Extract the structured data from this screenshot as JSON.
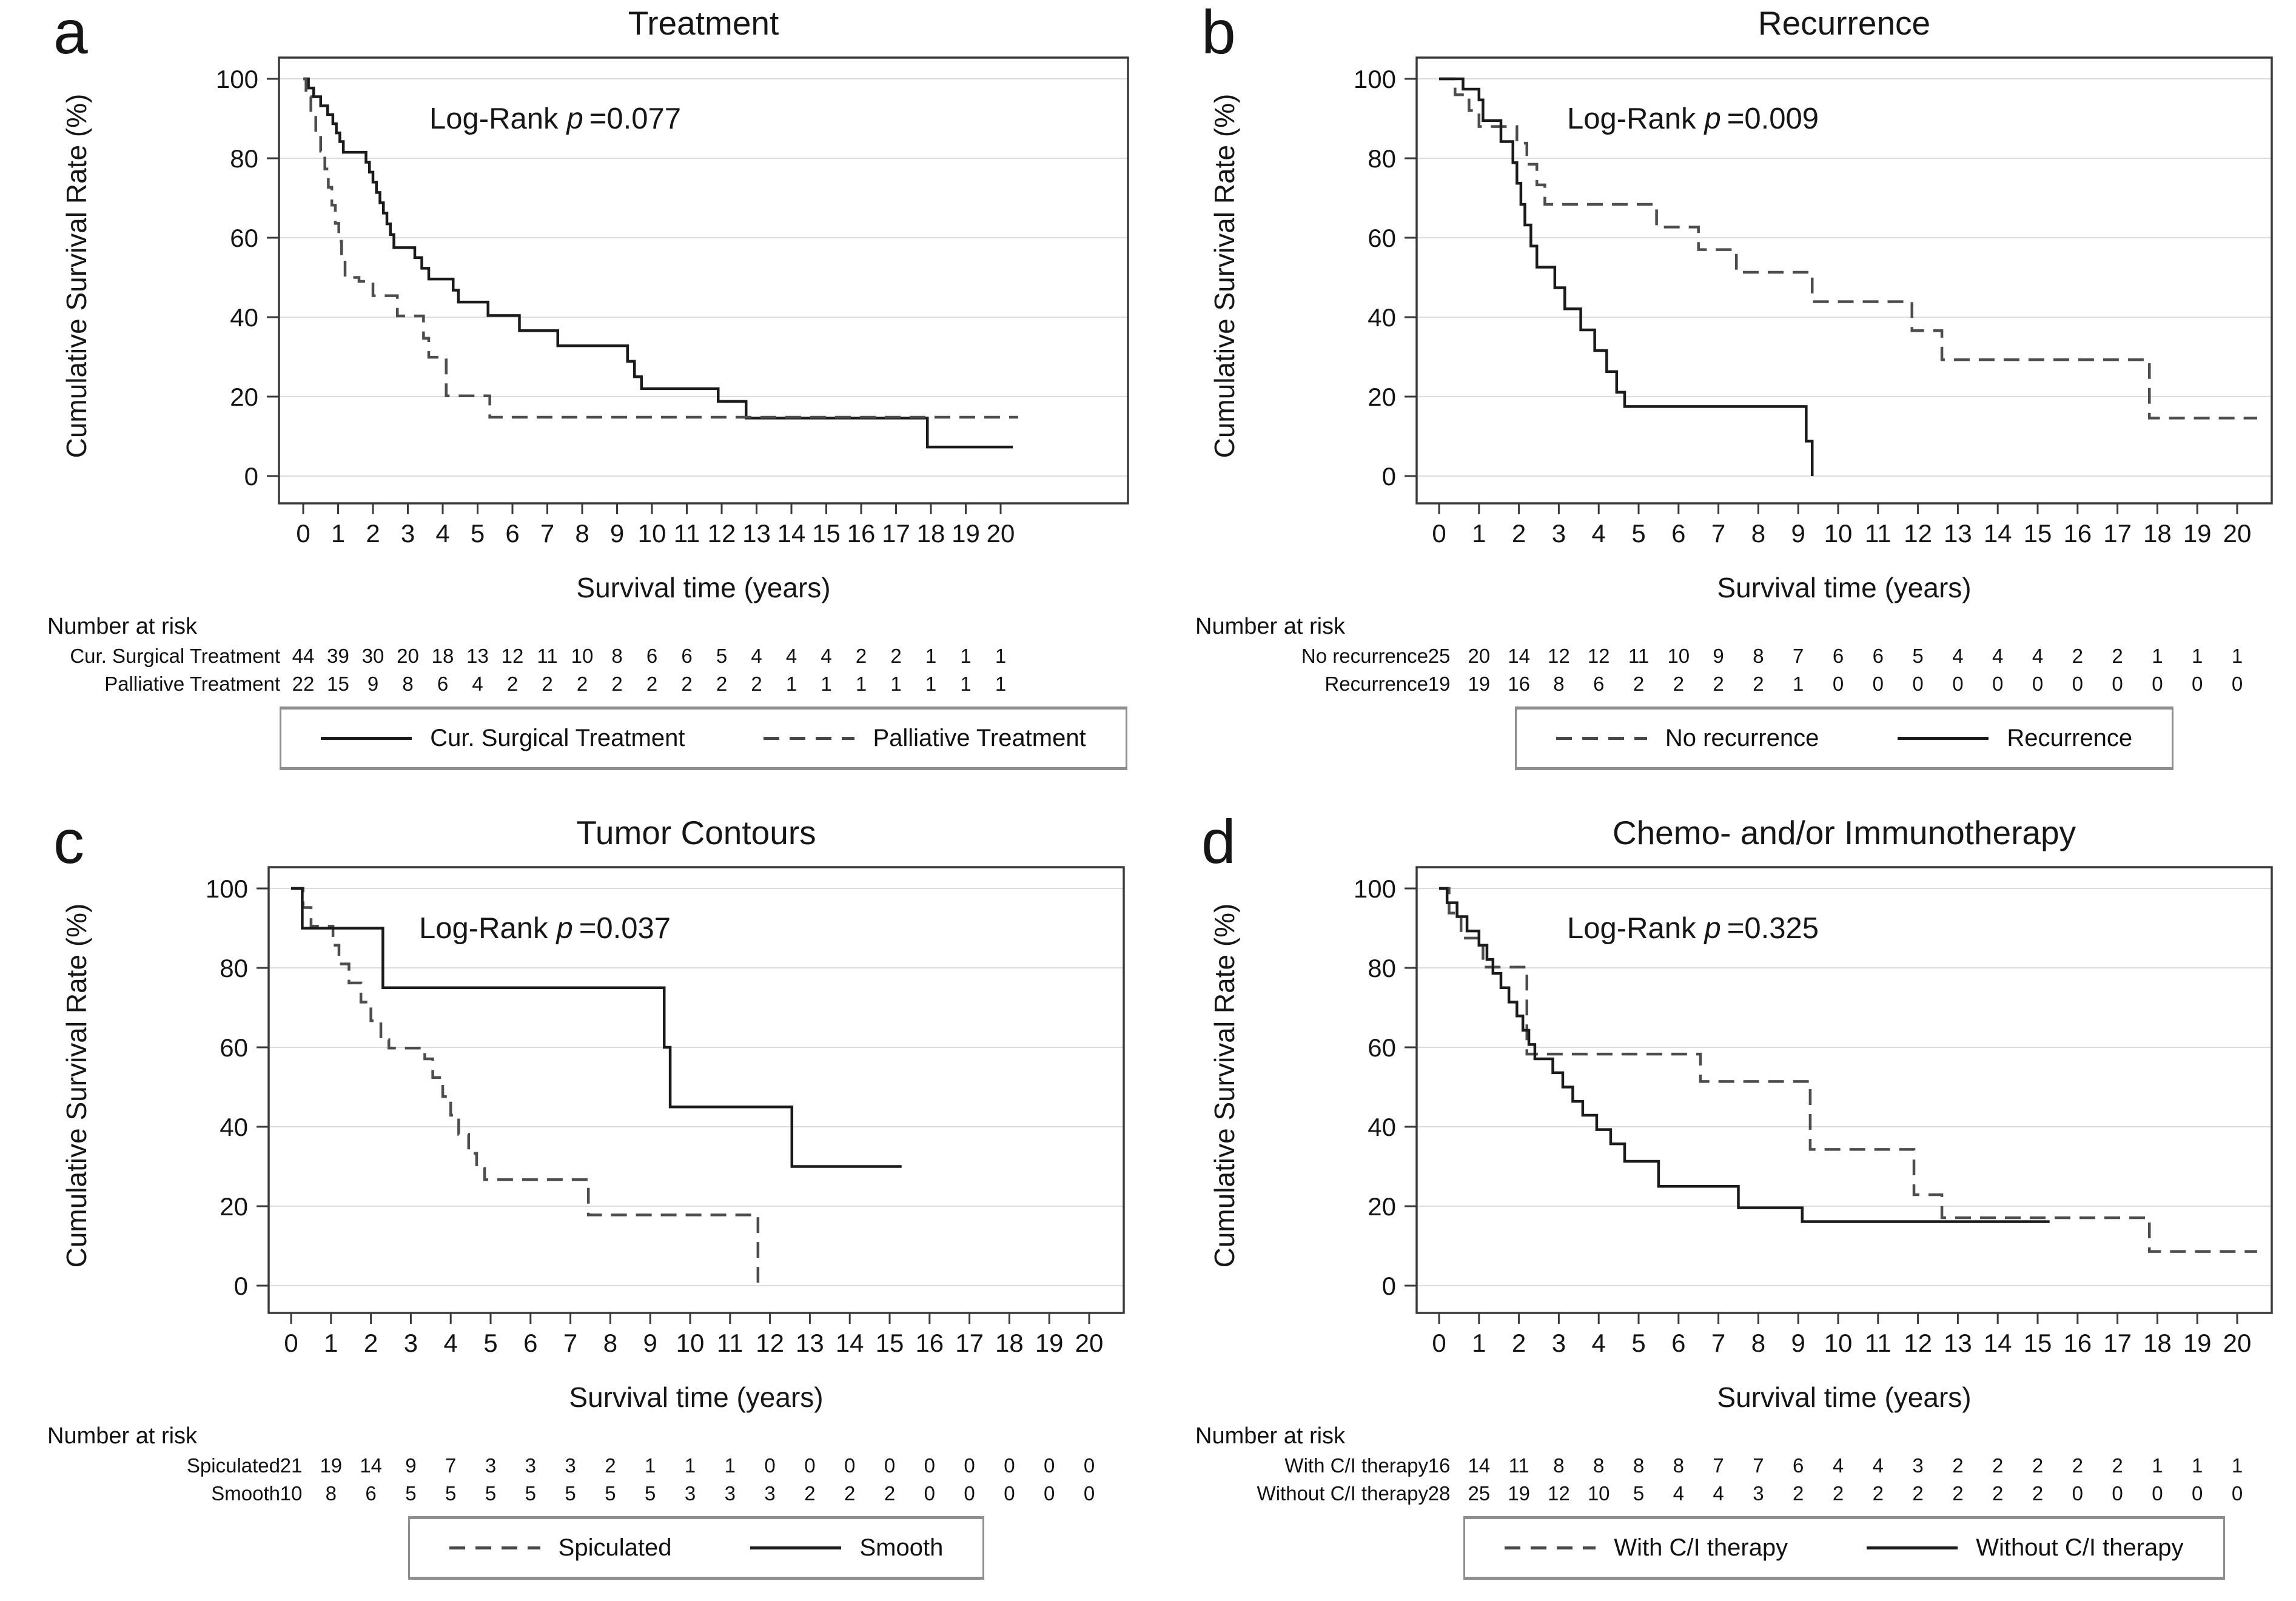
{
  "shared": {
    "risk_heading": "Number at risk",
    "logrank_label": "Log-Rank",
    "p_symbol": "p",
    "x_ticks": [
      0,
      1,
      2,
      3,
      4,
      5,
      6,
      7,
      8,
      9,
      10,
      11,
      12,
      13,
      14,
      15,
      16,
      17,
      18,
      19,
      20
    ],
    "y_ticks": [
      0,
      20,
      40,
      60,
      80,
      100
    ],
    "colors": {
      "solid_line": "#1b1b1b",
      "dashed_line": "#4d4d4d",
      "grid": "#dcdcdc",
      "frame": "#3a3a3a"
    }
  },
  "chart_data": [
    {
      "panel_label": "a",
      "type": "km_step_line",
      "title": "Treatment",
      "xlabel": "Survival time (years)",
      "ylabel": "Cumulative Survival Rate (%)",
      "xlim": [
        0,
        21.5
      ],
      "ylim": [
        0,
        100
      ],
      "logrank_p": "0.077",
      "p_text": "=0.077",
      "legend_position": "bottom",
      "grid": true,
      "series": [
        {
          "name": "Cur. Surgical Treatment",
          "line": "solid",
          "points": [
            [
              0,
              100
            ],
            [
              0.15,
              97.7
            ],
            [
              0.3,
              95.5
            ],
            [
              0.5,
              93.2
            ],
            [
              0.7,
              91
            ],
            [
              0.85,
              88.7
            ],
            [
              0.95,
              86.4
            ],
            [
              1.05,
              84.2
            ],
            [
              1.15,
              81.5
            ],
            [
              1.8,
              79
            ],
            [
              1.9,
              76.5
            ],
            [
              2,
              74
            ],
            [
              2.1,
              71.4
            ],
            [
              2.2,
              68.8
            ],
            [
              2.3,
              66.2
            ],
            [
              2.4,
              63.5
            ],
            [
              2.5,
              60.8
            ],
            [
              2.6,
              57.5
            ],
            [
              3.2,
              55
            ],
            [
              3.4,
              52.3
            ],
            [
              3.6,
              49.6
            ],
            [
              4.3,
              46.8
            ],
            [
              4.45,
              43.8
            ],
            [
              5.3,
              40.4
            ],
            [
              6.2,
              36.6
            ],
            [
              7.3,
              32.8
            ],
            [
              9.3,
              28.9
            ],
            [
              9.5,
              25
            ],
            [
              9.7,
              22
            ],
            [
              11.9,
              18.8
            ],
            [
              12.7,
              14.6
            ],
            [
              17.9,
              7.3
            ],
            [
              20.35,
              7.3
            ]
          ]
        },
        {
          "name": "Palliative Treatment",
          "line": "dashed",
          "points": [
            [
              0,
              100
            ],
            [
              0.08,
              95.5
            ],
            [
              0.22,
              90.9
            ],
            [
              0.36,
              86.4
            ],
            [
              0.5,
              81.8
            ],
            [
              0.62,
              77.3
            ],
            [
              0.72,
              72.7
            ],
            [
              0.82,
              68.2
            ],
            [
              0.92,
              63.6
            ],
            [
              1.02,
              59.1
            ],
            [
              1.1,
              54.5
            ],
            [
              1.2,
              50
            ],
            [
              1.6,
              49
            ],
            [
              2,
              45.4
            ],
            [
              2.7,
              40.3
            ],
            [
              3.45,
              34.7
            ],
            [
              3.6,
              29.9
            ],
            [
              4.1,
              20.2
            ],
            [
              5.35,
              14.8
            ],
            [
              20.5,
              14.8
            ]
          ]
        }
      ],
      "legend": [
        {
          "label": "Cur. Surgical Treatment",
          "line": "solid"
        },
        {
          "label": "Palliative Treatment",
          "line": "dashed"
        }
      ],
      "risk_table": {
        "rows": [
          {
            "label": "Cur. Surgical Treatment",
            "counts": [
              44,
              39,
              30,
              20,
              18,
              13,
              12,
              11,
              10,
              8,
              6,
              6,
              5,
              4,
              4,
              4,
              2,
              2,
              1,
              1,
              1
            ]
          },
          {
            "label": "Palliative Treatment",
            "counts": [
              22,
              15,
              9,
              8,
              6,
              4,
              2,
              2,
              2,
              2,
              2,
              2,
              2,
              2,
              1,
              1,
              1,
              1,
              1,
              1,
              1
            ]
          }
        ]
      }
    },
    {
      "panel_label": "b",
      "type": "km_step_line",
      "title": "Recurrence",
      "xlabel": "Survival time (years)",
      "ylabel": "Cumulative Survival Rate (%)",
      "xlim": [
        0,
        21
      ],
      "ylim": [
        0,
        100
      ],
      "logrank_p": "0.009",
      "p_text": "=0.009",
      "legend_position": "bottom",
      "grid": true,
      "series": [
        {
          "name": "No recurrence",
          "line": "dashed",
          "points": [
            [
              0,
              100
            ],
            [
              0.4,
              96
            ],
            [
              0.75,
              92
            ],
            [
              1,
              88
            ],
            [
              1.95,
              83.8
            ],
            [
              2.2,
              78.5
            ],
            [
              2.45,
              73.3
            ],
            [
              2.65,
              68.4
            ],
            [
              5.45,
              62.7
            ],
            [
              6.5,
              57
            ],
            [
              7.45,
              51.3
            ],
            [
              9.35,
              43.9
            ],
            [
              11.85,
              36.6
            ],
            [
              12.6,
              29.3
            ],
            [
              17.8,
              14.6
            ],
            [
              20.5,
              14.6
            ]
          ]
        },
        {
          "name": "Recurrence",
          "line": "solid",
          "points": [
            [
              0,
              100
            ],
            [
              0.6,
              97.4
            ],
            [
              1,
              94.7
            ],
            [
              1.1,
              89.5
            ],
            [
              1.55,
              84.2
            ],
            [
              1.85,
              78.9
            ],
            [
              1.95,
              73.7
            ],
            [
              2.05,
              68.4
            ],
            [
              2.15,
              63.2
            ],
            [
              2.3,
              57.9
            ],
            [
              2.45,
              52.6
            ],
            [
              2.9,
              47.4
            ],
            [
              3.15,
              42.1
            ],
            [
              3.55,
              36.8
            ],
            [
              3.9,
              31.6
            ],
            [
              4.2,
              26.3
            ],
            [
              4.45,
              21.1
            ],
            [
              4.65,
              17.5
            ],
            [
              9.2,
              8.8
            ],
            [
              9.35,
              0
            ]
          ]
        }
      ],
      "legend": [
        {
          "label": "No recurrence",
          "line": "dashed"
        },
        {
          "label": "Recurrence",
          "line": "solid"
        }
      ],
      "risk_table": {
        "rows": [
          {
            "label": "No recurrence",
            "counts": [
              25,
              20,
              14,
              12,
              12,
              11,
              10,
              9,
              8,
              7,
              6,
              6,
              5,
              4,
              4,
              4,
              2,
              2,
              1,
              1,
              1
            ]
          },
          {
            "label": "Recurrence",
            "counts": [
              19,
              19,
              16,
              8,
              6,
              2,
              2,
              2,
              2,
              1,
              0,
              0,
              0,
              0,
              0,
              0,
              0,
              0,
              0,
              0,
              0
            ]
          }
        ]
      }
    },
    {
      "panel_label": "c",
      "type": "km_step_line",
      "title": "Tumor Contours",
      "xlabel": "Survival time (years)",
      "ylabel": "Cumulative Survival Rate (%)",
      "xlim": [
        0,
        21
      ],
      "ylim": [
        0,
        100
      ],
      "logrank_p": "0.037",
      "p_text": "=0.037",
      "legend_position": "bottom",
      "grid": true,
      "series": [
        {
          "name": "Spiculated",
          "line": "dashed",
          "points": [
            [
              0,
              100
            ],
            [
              0.3,
              95.2
            ],
            [
              0.5,
              90.5
            ],
            [
              1.05,
              85.7
            ],
            [
              1.2,
              81
            ],
            [
              1.45,
              76.2
            ],
            [
              1.75,
              71.4
            ],
            [
              2,
              66.7
            ],
            [
              2.25,
              61.9
            ],
            [
              2.45,
              59.8
            ],
            [
              3.35,
              57.1
            ],
            [
              3.55,
              52.4
            ],
            [
              3.8,
              47.6
            ],
            [
              4,
              42.9
            ],
            [
              4.2,
              38.1
            ],
            [
              4.45,
              33.3
            ],
            [
              4.65,
              29.5
            ],
            [
              4.85,
              26.7
            ],
            [
              7.45,
              17.8
            ],
            [
              11.7,
              0
            ]
          ]
        },
        {
          "name": "Smooth",
          "line": "solid",
          "points": [
            [
              0,
              100
            ],
            [
              0.28,
              90
            ],
            [
              2.3,
              75
            ],
            [
              9.35,
              60
            ],
            [
              9.5,
              45
            ],
            [
              12.55,
              30
            ],
            [
              15.3,
              30
            ]
          ]
        }
      ],
      "legend": [
        {
          "label": "Spiculated",
          "line": "dashed"
        },
        {
          "label": "Smooth",
          "line": "solid"
        }
      ],
      "risk_table": {
        "rows": [
          {
            "label": "Spiculated",
            "counts": [
              21,
              19,
              14,
              9,
              7,
              3,
              3,
              3,
              2,
              1,
              1,
              1,
              0,
              0,
              0,
              0,
              0,
              0,
              0,
              0,
              0
            ]
          },
          {
            "label": "Smooth",
            "counts": [
              10,
              8,
              6,
              5,
              5,
              5,
              5,
              5,
              5,
              5,
              3,
              3,
              3,
              2,
              2,
              2,
              0,
              0,
              0,
              0,
              0
            ]
          }
        ]
      }
    },
    {
      "panel_label": "d",
      "type": "km_step_line",
      "title": "Chemo- and/or Immunotherapy",
      "xlabel": "Survival time (years)",
      "ylabel": "Cumulative Survival Rate (%)",
      "xlim": [
        0,
        21
      ],
      "ylim": [
        0,
        100
      ],
      "logrank_p": "0.325",
      "p_text": "=0.325",
      "legend_position": "bottom",
      "grid": true,
      "series": [
        {
          "name": "With C/I therapy",
          "line": "dashed",
          "points": [
            [
              0,
              100
            ],
            [
              0.25,
              93.8
            ],
            [
              0.55,
              87.5
            ],
            [
              1.1,
              80.2
            ],
            [
              2.2,
              58.3
            ],
            [
              6.55,
              51.4
            ],
            [
              9.3,
              34.3
            ],
            [
              11.9,
              22.9
            ],
            [
              12.6,
              17.1
            ],
            [
              17.8,
              8.6
            ],
            [
              20.5,
              8.6
            ]
          ]
        },
        {
          "name": "Without C/I therapy",
          "line": "solid",
          "points": [
            [
              0,
              100
            ],
            [
              0.2,
              96.4
            ],
            [
              0.45,
              92.9
            ],
            [
              0.7,
              89.3
            ],
            [
              1,
              85.7
            ],
            [
              1.2,
              82.1
            ],
            [
              1.35,
              78.6
            ],
            [
              1.55,
              75
            ],
            [
              1.75,
              71.4
            ],
            [
              1.95,
              67.9
            ],
            [
              2.1,
              64.3
            ],
            [
              2.25,
              60.7
            ],
            [
              2.4,
              57.1
            ],
            [
              2.85,
              53.6
            ],
            [
              3.1,
              50
            ],
            [
              3.35,
              46.4
            ],
            [
              3.6,
              42.9
            ],
            [
              3.95,
              39.3
            ],
            [
              4.3,
              35.7
            ],
            [
              4.65,
              31.3
            ],
            [
              5.5,
              25
            ],
            [
              7.5,
              19.6
            ],
            [
              9.1,
              16.1
            ],
            [
              15.3,
              16.1
            ]
          ]
        }
      ],
      "legend": [
        {
          "label": "With C/I therapy",
          "line": "dashed"
        },
        {
          "label": "Without C/I therapy",
          "line": "solid"
        }
      ],
      "risk_table": {
        "rows": [
          {
            "label": "With C/I therapy",
            "counts": [
              16,
              14,
              11,
              8,
              8,
              8,
              8,
              7,
              7,
              6,
              4,
              4,
              3,
              2,
              2,
              2,
              2,
              2,
              1,
              1,
              1
            ]
          },
          {
            "label": "Without C/I therapy",
            "counts": [
              28,
              25,
              19,
              12,
              10,
              5,
              4,
              4,
              3,
              2,
              2,
              2,
              2,
              2,
              2,
              2,
              0,
              0,
              0,
              0,
              0
            ]
          }
        ]
      }
    }
  ]
}
